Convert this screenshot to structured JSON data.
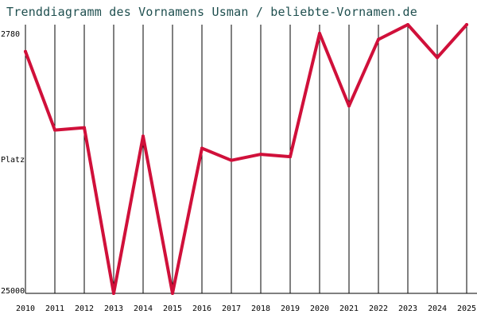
{
  "chart_data": {
    "type": "line",
    "title": "Trenddiagramm des Vornamens Usman / beliebte-Vornamen.de",
    "ylabel": "Platz",
    "x": [
      2010,
      2011,
      2012,
      2013,
      2014,
      2015,
      2016,
      2017,
      2018,
      2019,
      2020,
      2021,
      2022,
      2023,
      2024,
      2025
    ],
    "y_tick_labels": [
      "2780",
      "Platz",
      "25000"
    ],
    "ylim": [
      2780,
      25000
    ],
    "y_axis_inverted": true,
    "grid": "vertical",
    "series": [
      {
        "values": [
          5000,
          11500,
          11300,
          25000,
          12000,
          25000,
          13000,
          14000,
          13500,
          13700,
          3500,
          9500,
          4000,
          2780,
          5500,
          2780
        ],
        "color": "#d0103a"
      }
    ]
  }
}
